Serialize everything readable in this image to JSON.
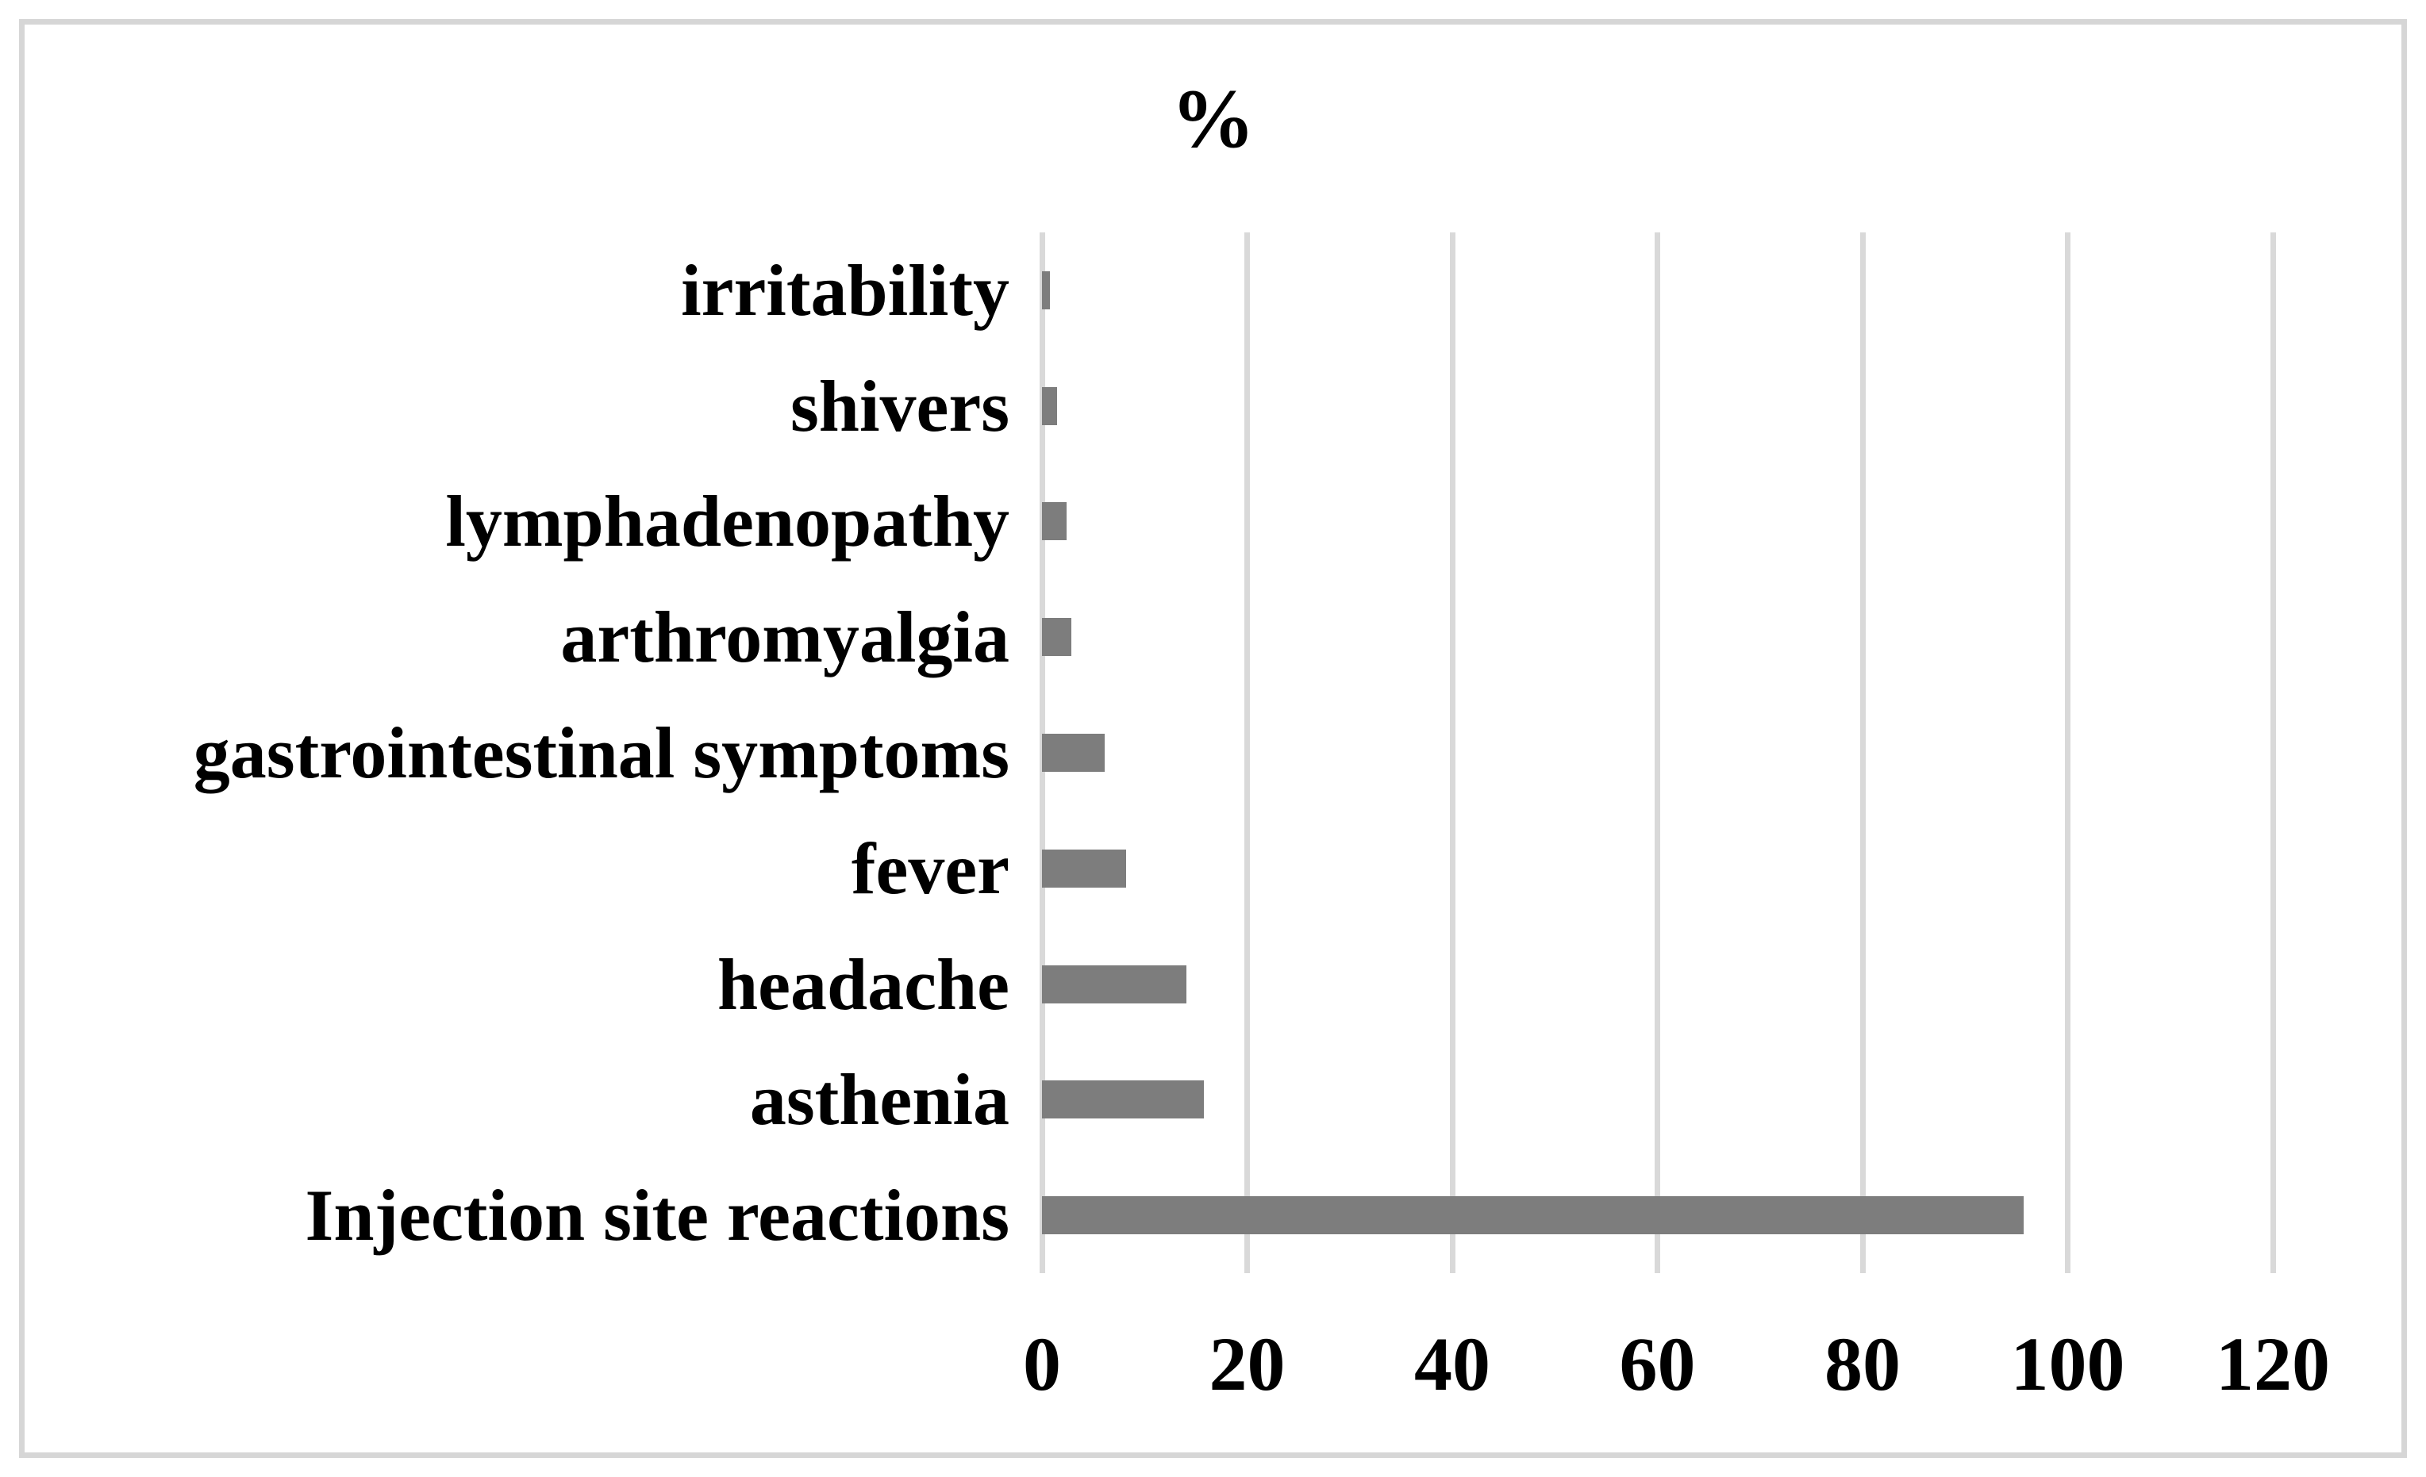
{
  "figure": {
    "title": "%"
  },
  "chart_data": {
    "type": "bar",
    "orientation": "horizontal",
    "title": "%",
    "categories": [
      "irritability",
      "shivers",
      "lymphadenopathy",
      "arthromyalgia",
      "gastrointestinal symptoms",
      "fever",
      "headache",
      "asthenia",
      "Injection site reactions"
    ],
    "values": [
      0.8,
      1.5,
      2.4,
      2.9,
      6.1,
      8.2,
      14.1,
      15.8,
      95.7
    ],
    "xlabel": "",
    "ylabel": "",
    "xlim": [
      0,
      120
    ],
    "xticks": [
      0,
      20,
      40,
      60,
      80,
      100,
      120
    ],
    "grid": "vertical-gridlines",
    "legend": "none",
    "bar_color": "#7d7d7d",
    "gridline_color": "#d9d9d9",
    "frame_color": "#d6d6d6",
    "text_color": "#000000",
    "background": "#ffffff"
  }
}
